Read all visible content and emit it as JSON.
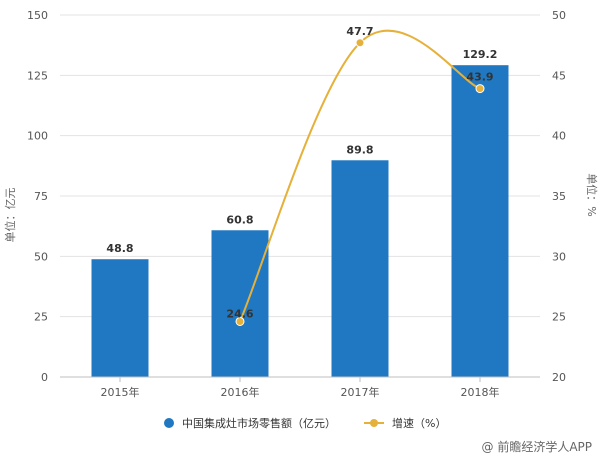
{
  "chart_data": {
    "type": "bar",
    "categories": [
      "2015年",
      "2016年",
      "2017年",
      "2018年"
    ],
    "series": [
      {
        "name": "中国集成灶市场零售额（亿元）",
        "type": "bar",
        "axis": "left",
        "color": "#1f78c1",
        "values": [
          48.8,
          60.8,
          89.8,
          129.2
        ]
      },
      {
        "name": "增速（%）",
        "type": "line",
        "axis": "right",
        "color": "#e6b13a",
        "values": [
          null,
          24.6,
          47.7,
          43.9
        ]
      }
    ],
    "ylabel": "单位：亿元",
    "ylim": [
      0,
      150
    ],
    "yticks": [
      0,
      25,
      50,
      75,
      100,
      125,
      150
    ],
    "y2label": "单位：%",
    "y2lim": [
      20,
      50
    ],
    "y2ticks": [
      20,
      25,
      30,
      35,
      40,
      45,
      50
    ],
    "grid": true,
    "legend": "bottom"
  },
  "watermark": {
    "credit": "@ 前瞻经济学人APP"
  }
}
